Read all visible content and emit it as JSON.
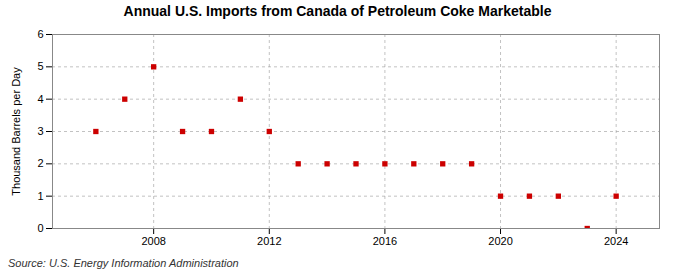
{
  "chart_data": {
    "type": "scatter",
    "title": "Annual U.S. Imports from Canada of Petroleum Coke Marketable",
    "ylabel": "Thousand Barrels per Day",
    "annotations": [
      "Source: U.S. Energy Information Administration"
    ],
    "x": [
      2006,
      2007,
      2008,
      2009,
      2010,
      2011,
      2012,
      2013,
      2014,
      2015,
      2016,
      2017,
      2018,
      2019,
      2020,
      2021,
      2022,
      2023,
      2024
    ],
    "values": [
      3,
      4,
      5,
      3,
      3,
      4,
      3,
      2,
      2,
      2,
      2,
      2,
      2,
      2,
      1,
      1,
      1,
      0,
      1
    ],
    "xlim": [
      2004.5,
      2025.5
    ],
    "xticks": [
      2008,
      2012,
      2016,
      2020,
      2024
    ],
    "ylim": [
      0,
      6
    ],
    "yticks": [
      0,
      1,
      2,
      3,
      4,
      5,
      6
    ],
    "color": "#cc0000",
    "marker": "square",
    "grid": true
  }
}
